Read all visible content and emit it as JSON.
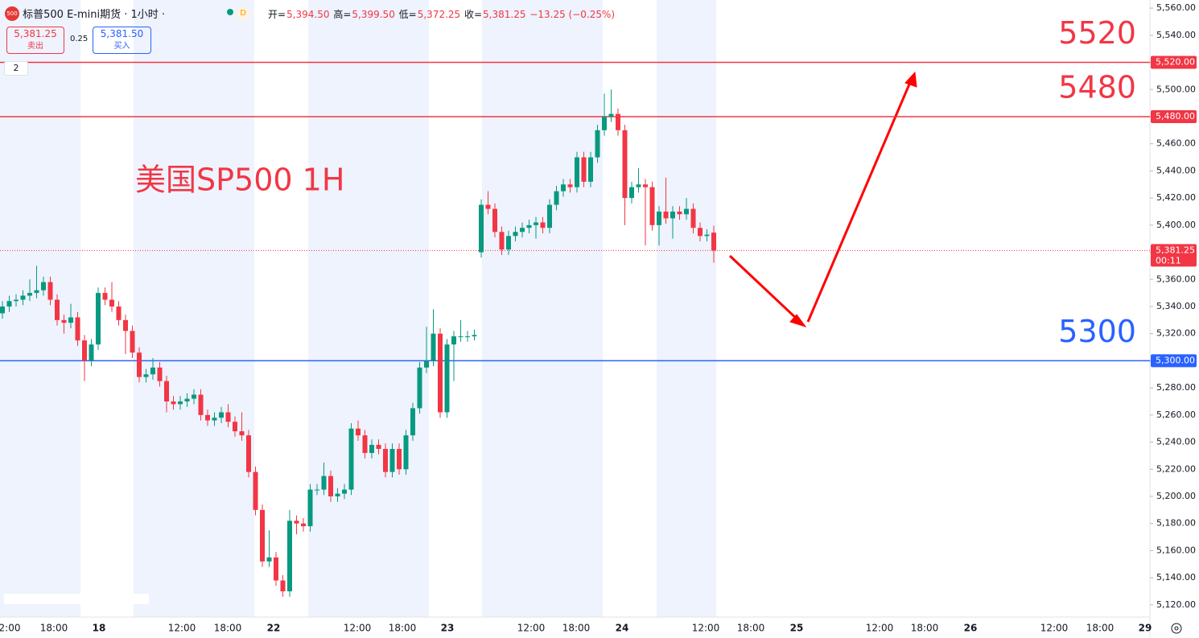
{
  "header": {
    "symbol_badge": "500",
    "title": "标普500 E-mini期货 · 1小时 ·",
    "interval_badge": "D",
    "ohlc": [
      {
        "key": "开=",
        "value": "5,394.50"
      },
      {
        "key": "高=",
        "value": "5,399.50"
      },
      {
        "key": "低=",
        "value": "5,372.25"
      },
      {
        "key": "收=",
        "value": "5,381.25"
      }
    ],
    "change": "−13.25 (−0.25%)",
    "sell_price": "5,381.25",
    "sell_label": "卖出",
    "spread": "0.25",
    "buy_price": "5,381.50",
    "buy_label": "买入",
    "indicator_count": "2"
  },
  "chart_data": {
    "type": "candlestick",
    "annotation": "美国SP500 1H",
    "up_color": "#089981",
    "down_color": "#f23645",
    "x_labels": [
      "2:00",
      "18:00",
      "18",
      "12:00",
      "18:00",
      "22",
      "12:00",
      "18:00",
      "23",
      "12:00",
      "18:00",
      "24",
      "12:00",
      "18:00",
      "25",
      "12:00",
      "18:00",
      "26",
      "12:00",
      "18:00",
      "29"
    ],
    "open": [
      5335,
      5340,
      5344,
      5345,
      5348,
      5350,
      5352,
      5358,
      5345,
      5330,
      5328,
      5332,
      5315,
      5300,
      5312,
      5350,
      5345,
      5340,
      5330,
      5322,
      5306,
      5288,
      5290,
      5295,
      5285,
      5270,
      5268,
      5270,
      5272,
      5275,
      5260,
      5256,
      5258,
      5262,
      5255,
      5248,
      5245,
      5218,
      5190,
      5152,
      5155,
      5138,
      5130,
      5182,
      5180,
      5178,
      5205,
      5205,
      5215,
      5200,
      5202,
      5205,
      5250,
      5245,
      5232,
      5238,
      5235,
      5218,
      5235,
      5220,
      5245,
      5265,
      5295,
      5300,
      5320,
      5262,
      5312,
      5318,
      5318,
      5318,
      5380,
      5415,
      5412,
      5395,
      5382,
      5392,
      5395,
      5398,
      5400,
      5402,
      5398,
      5415,
      5425,
      5430,
      5428,
      5450,
      5432,
      5450,
      5470,
      5480,
      5482,
      5470,
      5420,
      5428,
      5430,
      5428,
      5400,
      5410,
      5405,
      5410,
      5408,
      5412,
      5398,
      5392,
      5394.5
    ],
    "high": [
      5344,
      5348,
      5349,
      5352,
      5360,
      5370,
      5362,
      5362,
      5349,
      5334,
      5342,
      5336,
      5319,
      5316,
      5354,
      5354,
      5358,
      5344,
      5334,
      5326,
      5310,
      5294,
      5302,
      5299,
      5289,
      5274,
      5274,
      5276,
      5279,
      5279,
      5264,
      5262,
      5266,
      5268,
      5259,
      5262,
      5249,
      5222,
      5194,
      5175,
      5159,
      5142,
      5190,
      5186,
      5184,
      5209,
      5209,
      5225,
      5219,
      5206,
      5209,
      5254,
      5256,
      5249,
      5242,
      5242,
      5239,
      5239,
      5239,
      5249,
      5269,
      5299,
      5325,
      5338,
      5324,
      5316,
      5322,
      5330,
      5322,
      5323,
      5419,
      5425,
      5416,
      5399,
      5396,
      5399,
      5402,
      5404,
      5406,
      5406,
      5419,
      5429,
      5434,
      5434,
      5454,
      5454,
      5454,
      5474,
      5497,
      5500,
      5486,
      5474,
      5432,
      5442,
      5434,
      5432,
      5414,
      5435,
      5414,
      5414,
      5420,
      5416,
      5402,
      5397,
      5399.5
    ],
    "low": [
      5331,
      5336,
      5340,
      5341,
      5344,
      5346,
      5348,
      5341,
      5326,
      5320,
      5324,
      5311,
      5285,
      5296,
      5308,
      5341,
      5336,
      5326,
      5305,
      5302,
      5284,
      5284,
      5286,
      5281,
      5262,
      5264,
      5264,
      5266,
      5268,
      5256,
      5252,
      5252,
      5254,
      5251,
      5244,
      5241,
      5214,
      5186,
      5148,
      5148,
      5134,
      5126,
      5126,
      5172,
      5174,
      5174,
      5201,
      5201,
      5196,
      5196,
      5198,
      5201,
      5241,
      5228,
      5228,
      5231,
      5214,
      5214,
      5216,
      5216,
      5241,
      5261,
      5291,
      5296,
      5258,
      5258,
      5285,
      5314,
      5314,
      5315,
      5376,
      5408,
      5391,
      5378,
      5378,
      5388,
      5391,
      5394,
      5390,
      5394,
      5394,
      5411,
      5421,
      5424,
      5424,
      5428,
      5428,
      5446,
      5466,
      5476,
      5466,
      5400,
      5416,
      5424,
      5385,
      5396,
      5385,
      5401,
      5390,
      5404,
      5404,
      5394,
      5388,
      5388,
      5372.25
    ],
    "close": [
      5340,
      5344,
      5345,
      5348,
      5350,
      5352,
      5358,
      5345,
      5330,
      5328,
      5332,
      5315,
      5300,
      5312,
      5350,
      5345,
      5340,
      5330,
      5322,
      5306,
      5288,
      5290,
      5295,
      5285,
      5270,
      5268,
      5270,
      5272,
      5275,
      5260,
      5256,
      5258,
      5262,
      5255,
      5248,
      5245,
      5218,
      5190,
      5152,
      5155,
      5138,
      5130,
      5182,
      5180,
      5178,
      5205,
      5205,
      5215,
      5200,
      5202,
      5205,
      5250,
      5245,
      5232,
      5238,
      5235,
      5218,
      5235,
      5220,
      5245,
      5265,
      5295,
      5300,
      5320,
      5262,
      5312,
      5318,
      5318,
      5318,
      5319,
      5415,
      5412,
      5395,
      5382,
      5392,
      5395,
      5398,
      5400,
      5402,
      5398,
      5415,
      5425,
      5430,
      5428,
      5450,
      5432,
      5450,
      5470,
      5480,
      5482,
      5470,
      5420,
      5428,
      5430,
      5428,
      5400,
      5410,
      5405,
      5410,
      5408,
      5412,
      5398,
      5392,
      5393,
      5381.25
    ],
    "ylim": [
      5111,
      5566
    ],
    "yticks": [
      {
        "value": 5120,
        "label": "5,120.00"
      },
      {
        "value": 5140,
        "label": "5,140.00"
      },
      {
        "value": 5160,
        "label": "5,160.00"
      },
      {
        "value": 5180,
        "label": "5,180.00"
      },
      {
        "value": 5200,
        "label": "5,200.00"
      },
      {
        "value": 5220,
        "label": "5,220.00"
      },
      {
        "value": 5240,
        "label": "5,240.00"
      },
      {
        "value": 5260,
        "label": "5,260.00"
      },
      {
        "value": 5280,
        "label": "5,280.00"
      },
      {
        "value": 5300,
        "label": "5,300.00"
      },
      {
        "value": 5320,
        "label": "5,320.00"
      },
      {
        "value": 5340,
        "label": "5,340.00"
      },
      {
        "value": 5360,
        "label": "5,360.00"
      },
      {
        "value": 5380,
        "label": "5,380.00"
      },
      {
        "value": 5400,
        "label": "5,400.00"
      },
      {
        "value": 5420,
        "label": "5,420.00"
      },
      {
        "value": 5440,
        "label": "5,440.00"
      },
      {
        "value": 5460,
        "label": "5,460.00"
      },
      {
        "value": 5480,
        "label": "5,480.00"
      },
      {
        "value": 5500,
        "label": "5,500.00"
      },
      {
        "value": 5520,
        "label": "5,520.00"
      },
      {
        "value": 5540,
        "label": "5,540.00"
      },
      {
        "value": 5560,
        "label": "5,560.00"
      }
    ],
    "levels": [
      {
        "value": 5520,
        "label": "5520",
        "axis_label": "5,520.00",
        "color": "#f23645"
      },
      {
        "value": 5480,
        "label": "5480",
        "axis_label": "5,480.00",
        "color": "#f23645"
      },
      {
        "value": 5300,
        "label": "5300",
        "axis_label": "5,300.00",
        "color": "#2962ff"
      }
    ],
    "last": {
      "value": 5381.25,
      "label": "5,381.25",
      "countdown": "00:11"
    }
  }
}
